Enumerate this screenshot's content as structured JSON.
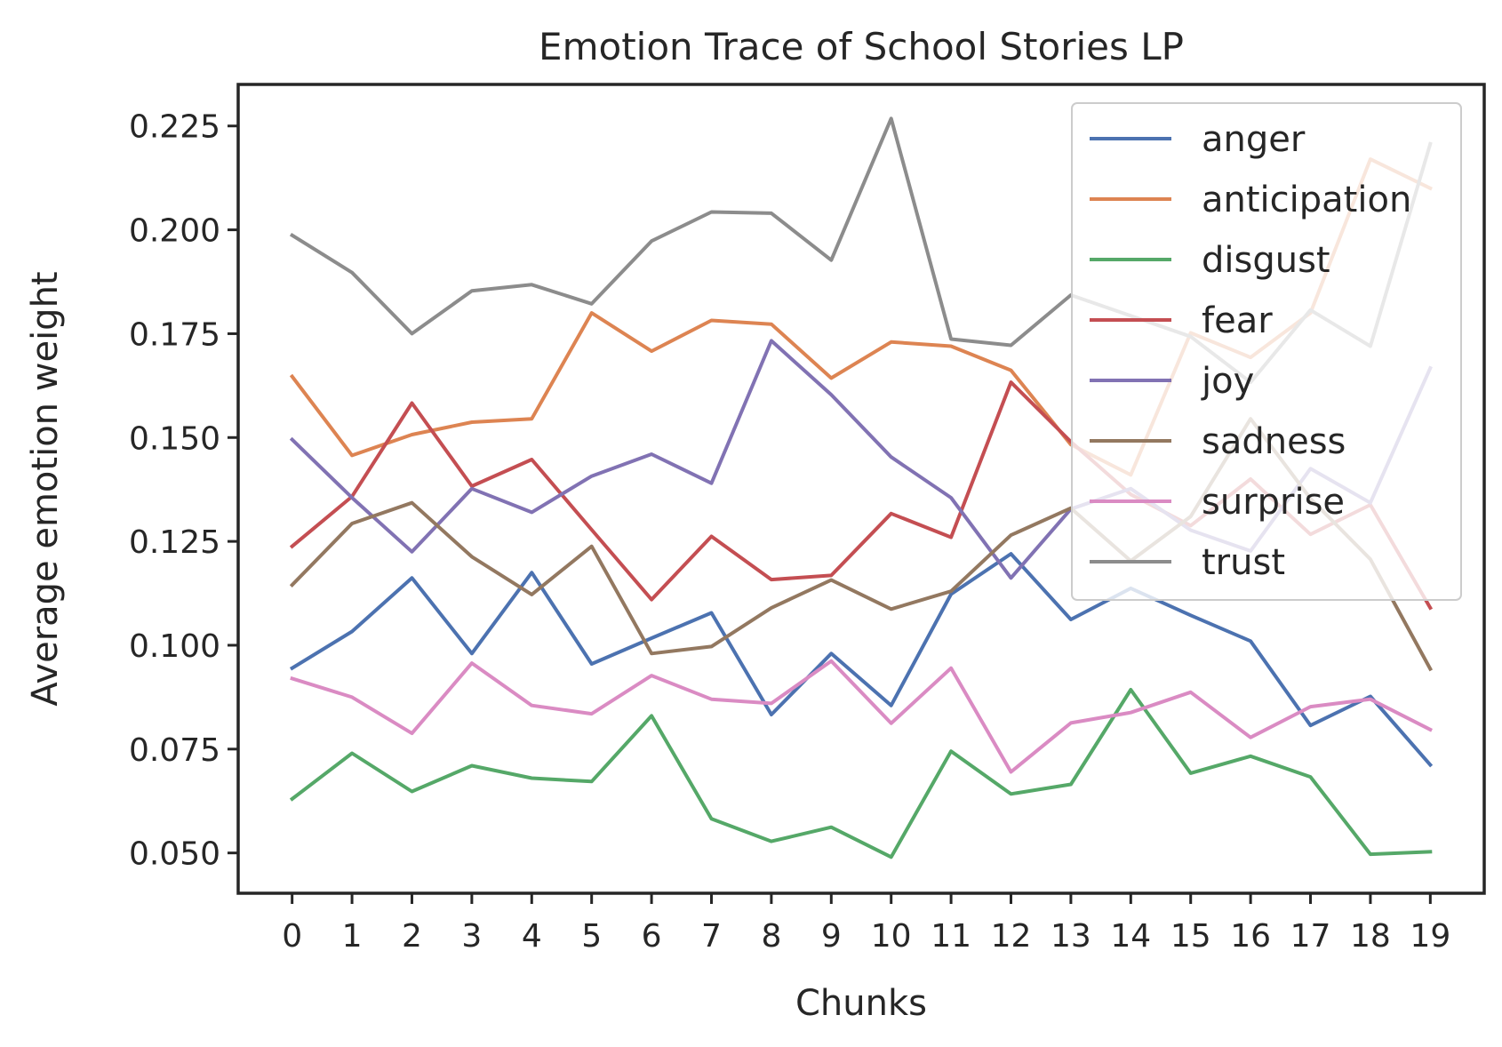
{
  "chart_data": {
    "type": "line",
    "title": "Emotion Trace of School Stories LP",
    "xlabel": "Chunks",
    "ylabel": "Average emotion weight",
    "x": [
      0,
      1,
      2,
      3,
      4,
      5,
      6,
      7,
      8,
      9,
      10,
      11,
      12,
      13,
      14,
      15,
      16,
      17,
      18,
      19
    ],
    "xlim": [
      -0.9,
      19.9
    ],
    "ylim": [
      0.0403,
      0.235
    ],
    "yticks": [
      0.05,
      0.075,
      0.1,
      0.125,
      0.15,
      0.175,
      0.2,
      0.225
    ],
    "ytick_labels": [
      "0.050",
      "0.075",
      "0.100",
      "0.125",
      "0.150",
      "0.175",
      "0.200",
      "0.225"
    ],
    "grid": false,
    "legend": "top-right",
    "series": [
      {
        "name": "anger",
        "color": "#4c72b0",
        "values": [
          0.0945,
          0.1033,
          0.1162,
          0.098,
          0.1175,
          0.0955,
          0.1017,
          0.1078,
          0.0833,
          0.098,
          0.0855,
          0.1123,
          0.122,
          0.1062,
          0.1137,
          0.1072,
          0.101,
          0.0807,
          0.0877,
          0.0712
        ]
      },
      {
        "name": "anticipation",
        "color": "#dd8452",
        "values": [
          0.1647,
          0.1457,
          0.1507,
          0.1537,
          0.1545,
          0.18,
          0.1708,
          0.1782,
          0.1773,
          0.1643,
          0.173,
          0.172,
          0.1662,
          0.1483,
          0.141,
          0.1752,
          0.1693,
          0.18,
          0.217,
          0.21
        ]
      },
      {
        "name": "disgust",
        "color": "#55a868",
        "values": [
          0.063,
          0.074,
          0.0648,
          0.071,
          0.068,
          0.0672,
          0.083,
          0.0582,
          0.0528,
          0.0562,
          0.049,
          0.0745,
          0.0642,
          0.0665,
          0.0893,
          0.0692,
          0.0733,
          0.0683,
          0.0497,
          0.0503
        ]
      },
      {
        "name": "fear",
        "color": "#c44e52",
        "values": [
          0.1238,
          0.1358,
          0.1583,
          0.1383,
          0.1447,
          0.1278,
          0.111,
          0.1262,
          0.1158,
          0.1168,
          0.1317,
          0.126,
          0.1633,
          0.149,
          0.1363,
          0.1288,
          0.14,
          0.1267,
          0.1338,
          0.109
        ]
      },
      {
        "name": "joy",
        "color": "#8172b3",
        "values": [
          0.1495,
          0.1355,
          0.1225,
          0.1377,
          0.132,
          0.1407,
          0.146,
          0.139,
          0.1733,
          0.1603,
          0.1453,
          0.1355,
          0.1162,
          0.1328,
          0.1377,
          0.1277,
          0.1227,
          0.1425,
          0.1343,
          0.1667
        ]
      },
      {
        "name": "sadness",
        "color": "#937860",
        "values": [
          0.1145,
          0.1293,
          0.1343,
          0.1213,
          0.1122,
          0.1238,
          0.098,
          0.0997,
          0.109,
          0.1157,
          0.1087,
          0.113,
          0.1265,
          0.133,
          0.1203,
          0.131,
          0.1545,
          0.1353,
          0.1207,
          0.0943
        ]
      },
      {
        "name": "surprise",
        "color": "#da8bc3",
        "values": [
          0.092,
          0.0875,
          0.0788,
          0.0957,
          0.0855,
          0.0835,
          0.0927,
          0.087,
          0.086,
          0.0962,
          0.0812,
          0.0945,
          0.0695,
          0.0813,
          0.0838,
          0.0887,
          0.0778,
          0.0852,
          0.087,
          0.0797
        ]
      },
      {
        "name": "trust",
        "color": "#8c8c8c",
        "values": [
          0.1987,
          0.1897,
          0.175,
          0.1853,
          0.1868,
          0.1822,
          0.1973,
          0.2043,
          0.204,
          0.1927,
          0.2268,
          0.1737,
          0.1722,
          0.1843,
          0.1793,
          0.1743,
          0.1633,
          0.1807,
          0.172,
          0.2207
        ]
      }
    ]
  }
}
